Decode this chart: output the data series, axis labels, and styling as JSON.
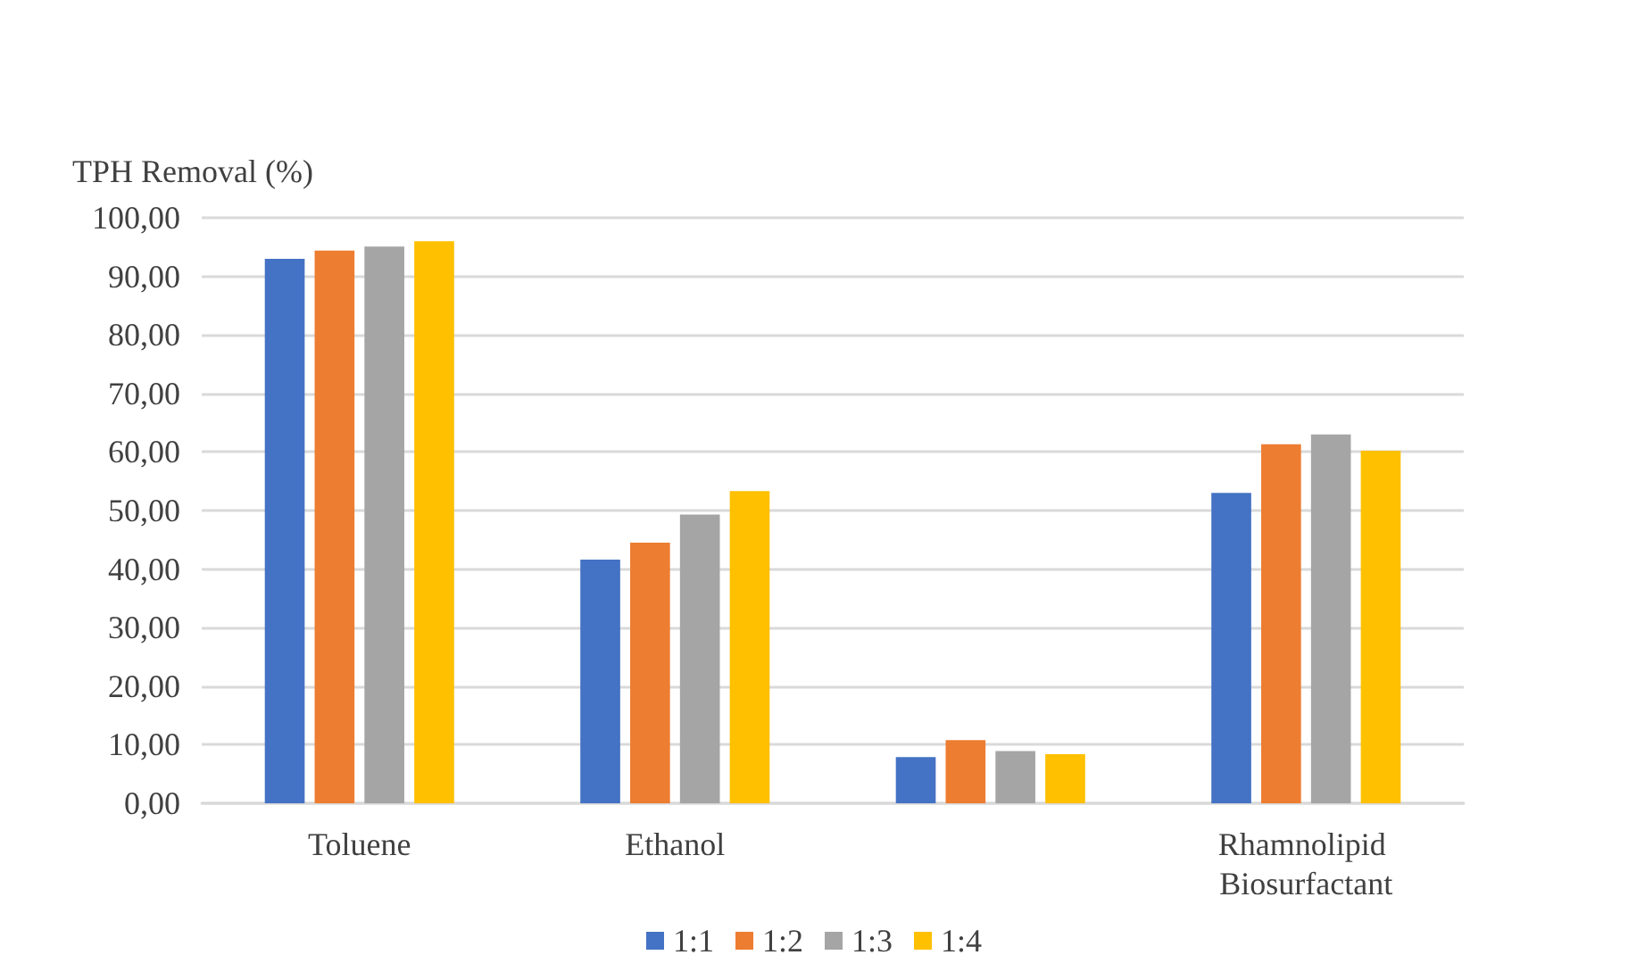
{
  "chart_data": {
    "type": "bar",
    "ylabel": "TPH Removal (%)",
    "categories": [
      "Toluene",
      "Ethanol",
      null,
      "Rhamnolipid Biosurfactant"
    ],
    "series": [
      {
        "name": "1:1",
        "color": "#4472c4",
        "values": [
          93.0,
          41.6,
          7.9,
          53.0
        ]
      },
      {
        "name": "1:2",
        "color": "#ed7d31",
        "values": [
          94.4,
          44.5,
          10.8,
          61.3
        ]
      },
      {
        "name": "1:3",
        "color": "#a5a5a5",
        "values": [
          95.1,
          49.3,
          8.9,
          63.0
        ]
      },
      {
        "name": "1:4",
        "color": "#ffc000",
        "values": [
          96.0,
          53.3,
          8.4,
          60.2
        ]
      }
    ],
    "ylim": [
      0,
      100
    ],
    "yticks": [
      {
        "value": 0,
        "label": "0,00"
      },
      {
        "value": 10,
        "label": "10,00"
      },
      {
        "value": 20,
        "label": "20,00"
      },
      {
        "value": 30,
        "label": "30,00"
      },
      {
        "value": 40,
        "label": "40,00"
      },
      {
        "value": 50,
        "label": "50,00"
      },
      {
        "value": 60,
        "label": "60,00"
      },
      {
        "value": 70,
        "label": "70,00"
      },
      {
        "value": 80,
        "label": "80,00"
      },
      {
        "value": 90,
        "label": "90,00"
      },
      {
        "value": 100,
        "label": "100,00"
      }
    ],
    "grid": "y",
    "legend": "bottom"
  }
}
